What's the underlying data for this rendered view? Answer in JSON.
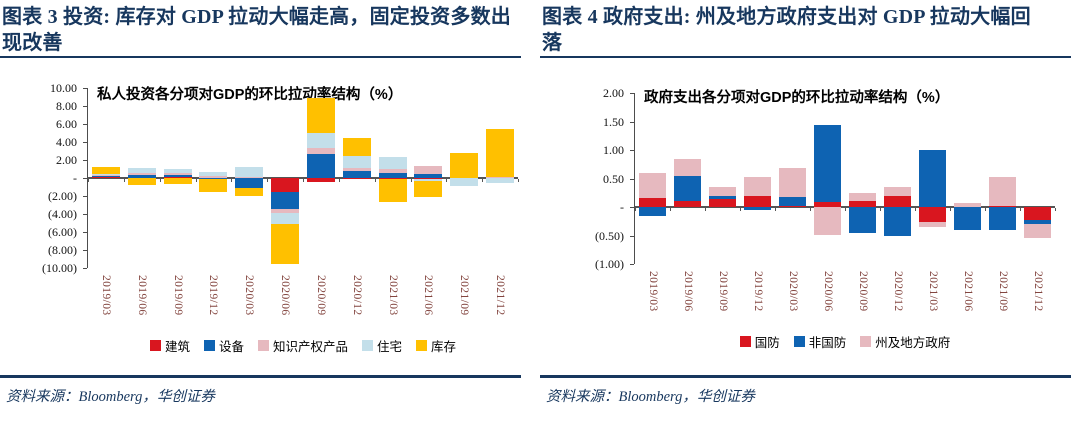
{
  "figures": [
    {
      "header": "图表 3  投资: 库存对 GDP 拉动大幅走高，固定投资多数出现改善",
      "source": "资料来源：Bloomberg，华创证券"
    },
    {
      "header": "图表 4  政府支出: 州及地方政府支出对 GDP 拉动大幅回落",
      "source": "资料来源：Bloomberg，华创证券"
    }
  ],
  "colors": {
    "header_navy": "#17375E",
    "axis_gray": "#4d4d4d",
    "xlabel_maroon": "#83453f",
    "bar_red": "#D9161F",
    "bar_blue": "#0E63B2",
    "bar_pink": "#E6B9BF",
    "bar_lightblue": "#C3DFEA",
    "bar_yellow": "#FFC000"
  },
  "chart_data": [
    {
      "type": "bar",
      "stacked": true,
      "title": "私人投资各分项对GDP的环比拉动率结构（%）",
      "categories": [
        "2019/03",
        "2019/06",
        "2019/09",
        "2019/12",
        "2020/03",
        "2020/06",
        "2020/09",
        "2020/12",
        "2021/03",
        "2021/06",
        "2021/09",
        "2021/12"
      ],
      "series": [
        {
          "name": "建筑",
          "color": "#D9161F",
          "values": [
            0.1,
            0.05,
            0.1,
            0.05,
            -0.05,
            -1.5,
            -0.4,
            -0.15,
            -0.1,
            -0.1,
            0.0,
            -0.05
          ]
        },
        {
          "name": "设备",
          "color": "#0E63B2",
          "values": [
            0.15,
            0.28,
            0.25,
            -0.15,
            -1.05,
            -1.95,
            2.7,
            0.75,
            0.55,
            0.45,
            0.0,
            0.05
          ]
        },
        {
          "name": "知识产权产品",
          "color": "#E6B9BF",
          "values": [
            0.1,
            0.25,
            0.2,
            0.15,
            0.1,
            -0.45,
            0.65,
            0.4,
            0.45,
            0.9,
            0.05,
            0.1
          ]
        },
        {
          "name": "住宅",
          "color": "#C3DFEA",
          "values": [
            0.15,
            0.5,
            0.4,
            0.45,
            1.1,
            -1.25,
            1.7,
            1.25,
            1.3,
            -0.2,
            -0.85,
            -0.55
          ]
        },
        {
          "name": "库存",
          "color": "#FFC000",
          "values": [
            0.75,
            -0.8,
            -0.68,
            -1.45,
            -0.95,
            -4.45,
            3.8,
            2.0,
            -2.55,
            -1.8,
            2.7,
            5.3
          ]
        }
      ],
      "ylim": [
        -10,
        10
      ],
      "ytick_step": 2,
      "ytick_labels": [
        "10.00",
        "8.00",
        "6.00",
        "4.00",
        "2.00",
        "-",
        "(2.00)",
        "(4.00)",
        "(6.00)",
        "(8.00)",
        "(10.00)"
      ],
      "grid": false,
      "legend_position": "bottom"
    },
    {
      "type": "bar",
      "stacked": true,
      "title": "政府支出各分项对GDP的环比拉动率结构（%）",
      "categories": [
        "2019/03",
        "2019/06",
        "2019/09",
        "2019/12",
        "2020/03",
        "2020/06",
        "2020/09",
        "2020/12",
        "2021/03",
        "2021/06",
        "2021/09",
        "2021/12"
      ],
      "series": [
        {
          "name": "国防",
          "color": "#D9161F",
          "values": [
            0.15,
            0.1,
            0.14,
            0.2,
            0.02,
            0.09,
            0.11,
            0.2,
            -0.27,
            0.0,
            0.02,
            -0.23
          ]
        },
        {
          "name": "非国防",
          "color": "#0E63B2",
          "values": [
            -0.15,
            0.45,
            0.06,
            -0.05,
            0.16,
            1.35,
            -0.46,
            -0.5,
            1.0,
            -0.4,
            -0.4,
            -0.06
          ]
        },
        {
          "name": "州及地方政府",
          "color": "#E6B9BF",
          "values": [
            0.45,
            0.3,
            0.15,
            0.33,
            0.5,
            -0.49,
            0.13,
            0.15,
            -0.08,
            0.07,
            0.5,
            -0.26
          ]
        }
      ],
      "ylim": [
        -1,
        2
      ],
      "ytick_step": 0.5,
      "ytick_labels": [
        "2.00",
        "1.50",
        "1.00",
        "0.50",
        "-",
        "(0.50)",
        "(1.00)"
      ],
      "grid": false,
      "legend_position": "bottom"
    }
  ]
}
